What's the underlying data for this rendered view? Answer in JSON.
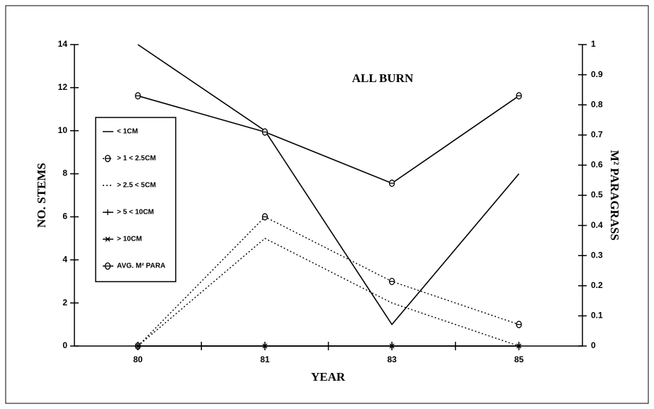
{
  "chart_data": {
    "type": "line",
    "title": "ALL BURN",
    "x_label": "YEAR",
    "y_label": "NO. STEMS",
    "y2_label": "M² PARAGRASS",
    "categories": [
      "80",
      "81",
      "83",
      "85"
    ],
    "ylim": [
      0,
      14
    ],
    "yticks": [
      0,
      2,
      4,
      6,
      8,
      10,
      12,
      14
    ],
    "y2lim": [
      0,
      1
    ],
    "y2ticks": [
      0,
      0.1,
      0.2,
      0.3,
      0.4,
      0.5,
      0.6,
      0.7,
      0.8,
      0.9,
      1
    ],
    "series": [
      {
        "name": "< 1CM",
        "color": "#000000",
        "dash": "solid",
        "marker": "none",
        "values": [
          14,
          10,
          1,
          8
        ]
      },
      {
        "name": "> 1 < 2.5CM",
        "color": "#000000",
        "dash": "dotted",
        "marker": "theta",
        "values": [
          0,
          6,
          3,
          1
        ]
      },
      {
        "name": "> 2.5 < 5CM",
        "color": "#000000",
        "dash": "dotted",
        "marker": "none",
        "values": [
          0,
          5,
          2,
          0
        ]
      },
      {
        "name": "> 5 < 10CM",
        "color": "#000000",
        "dash": "solid",
        "marker": "plus",
        "values": [
          0,
          0,
          0,
          0
        ]
      },
      {
        "name": "> 10CM",
        "color": "#000000",
        "dash": "solid",
        "marker": "star",
        "values": [
          0,
          0,
          0,
          0
        ]
      },
      {
        "name": "AVG. M² PARA",
        "color": "#000000",
        "dash": "solid",
        "marker": "theta",
        "axis": "y2",
        "values": [
          0.83,
          0.71,
          0.54,
          0.83
        ]
      }
    ]
  }
}
